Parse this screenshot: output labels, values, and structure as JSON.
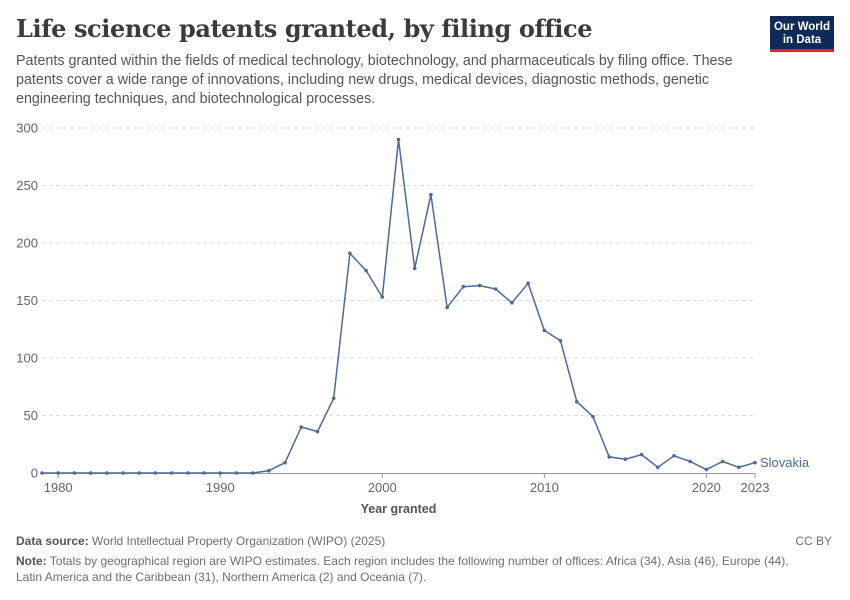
{
  "header": {
    "title": "Life science patents granted, by filing office",
    "subtitle": "Patents granted within the fields of medical technology, biotechnology, and pharmaceuticals by filing office. These patents cover a wide range of innovations, including new drugs, medical devices, diagnostic methods, genetic engineering techniques, and biotechnological processes.",
    "logo_line1": "Our World",
    "logo_line2": "in Data"
  },
  "footer": {
    "source_label": "Data source:",
    "source_text": "World Intellectual Property Organization (WIPO) (2025)",
    "license": "CC BY",
    "note_label": "Note:",
    "note_text": "Totals by geographical region are WIPO estimates. Each region includes the following number of offices: Africa (34), Asia (46), Europe (44), Latin America and the Caribbean (31), Northern America (2) and Oceania (7)."
  },
  "colors": {
    "series": "#4c6a9c",
    "grid": "#dddddd",
    "axis": "#666666"
  },
  "chart_data": {
    "type": "line",
    "title": "Life science patents granted, by filing office",
    "xlabel": "Year granted",
    "ylabel": "",
    "xlim": [
      1979,
      2023
    ],
    "ylim": [
      0,
      300
    ],
    "yticks": [
      0,
      50,
      100,
      150,
      200,
      250,
      300
    ],
    "xticks": [
      1980,
      1990,
      2000,
      2010,
      2020,
      2023
    ],
    "grid": true,
    "series": [
      {
        "name": "Slovakia",
        "x": [
          1979,
          1980,
          1981,
          1982,
          1983,
          1984,
          1985,
          1986,
          1987,
          1988,
          1989,
          1990,
          1991,
          1992,
          1993,
          1994,
          1995,
          1996,
          1997,
          1998,
          1999,
          2000,
          2001,
          2002,
          2003,
          2004,
          2005,
          2006,
          2007,
          2008,
          2009,
          2010,
          2011,
          2012,
          2013,
          2014,
          2015,
          2016,
          2017,
          2018,
          2019,
          2020,
          2021,
          2022,
          2023
        ],
        "values": [
          0,
          0,
          0,
          0,
          0,
          0,
          0,
          0,
          0,
          0,
          0,
          0,
          0,
          0,
          2,
          9,
          40,
          36,
          65,
          191,
          176,
          153,
          290,
          178,
          242,
          144,
          162,
          163,
          160,
          148,
          165,
          124,
          115,
          62,
          49,
          14,
          12,
          16,
          5,
          15,
          10,
          3,
          10,
          5,
          9
        ]
      }
    ]
  }
}
